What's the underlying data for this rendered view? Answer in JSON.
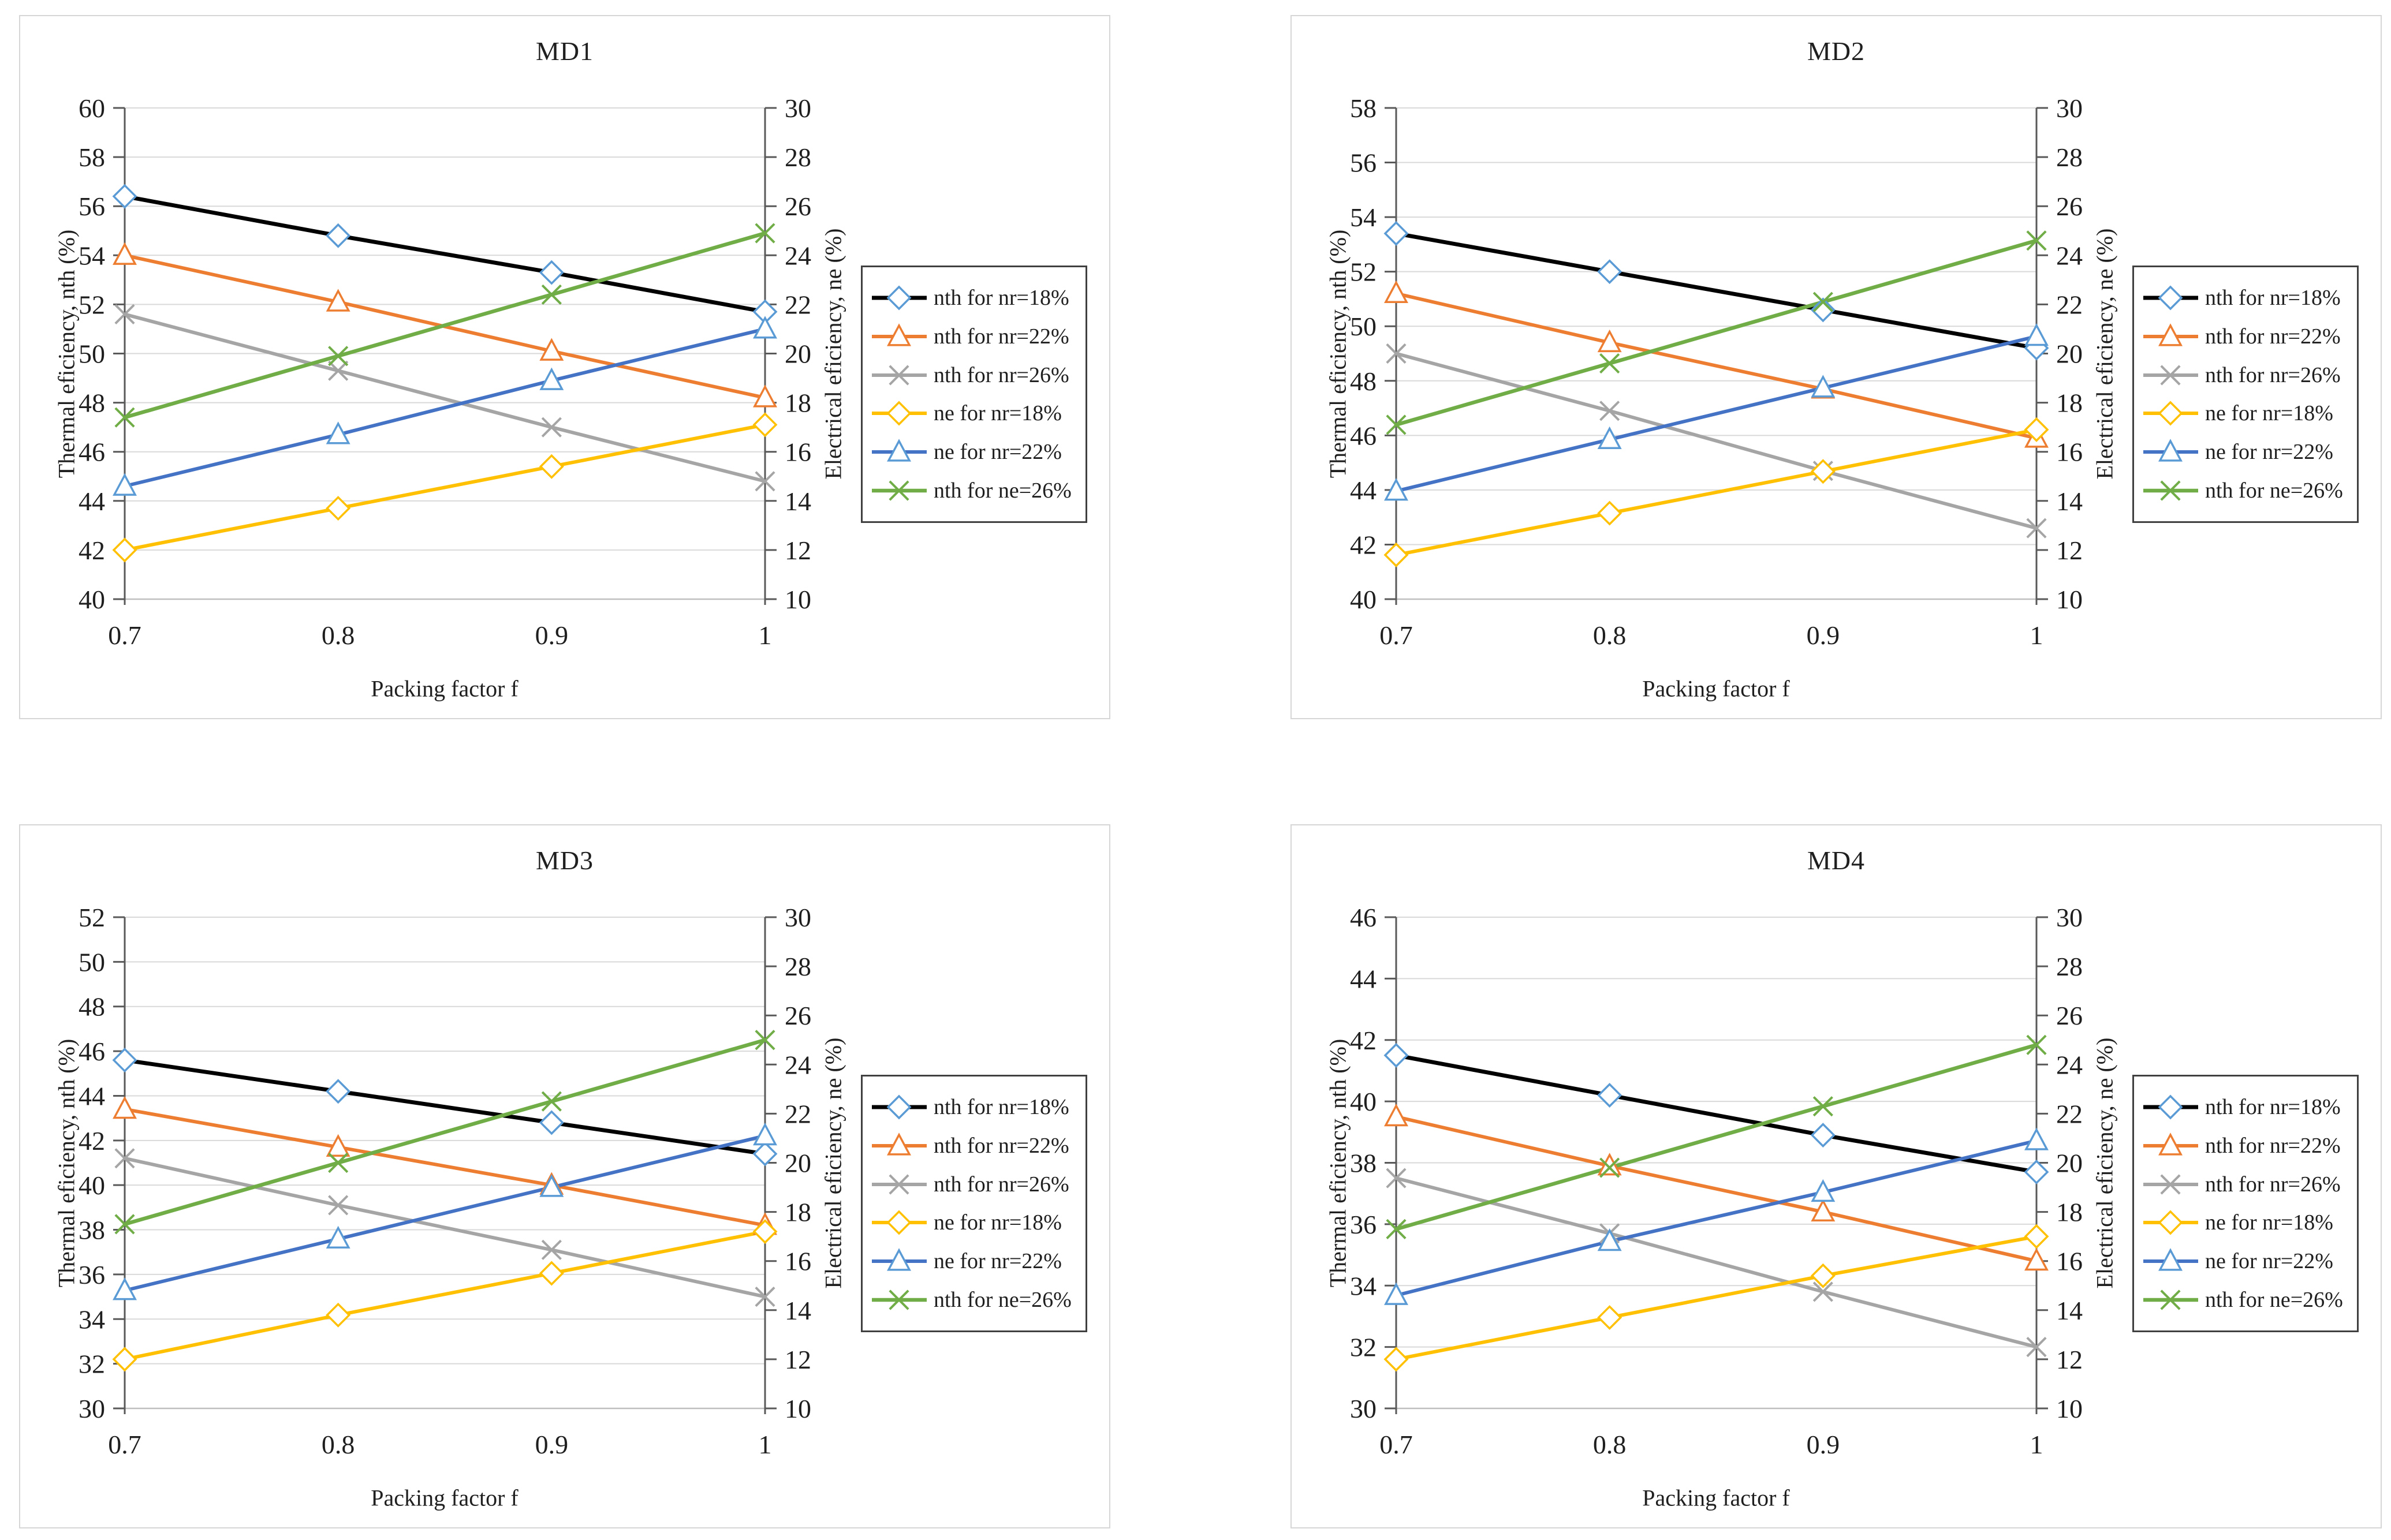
{
  "chart_data": [
    {
      "type": "line",
      "title": "MD1",
      "xlabel": "Packing factor f",
      "grid": true,
      "legend_position": "right",
      "x_tick_labels": [
        "0.7",
        "0.8",
        "0.9",
        "1"
      ],
      "x_values": [
        0.7,
        0.8,
        0.9,
        1
      ],
      "left_axis": {
        "label": "Thermal eficiency, nth (%)",
        "min": 40,
        "max": 60,
        "step": 2
      },
      "right_axis": {
        "label": "Electrical eficiency, ne (%)",
        "min": 10,
        "max": 30,
        "step": 2
      },
      "series": [
        {
          "name": "nth for nr=18%",
          "axis": "left",
          "line_color": "#000000",
          "line_width": 7,
          "marker": "diamond",
          "marker_color": "#5B9BD5",
          "values": [
            56.4,
            54.8,
            53.3,
            51.7
          ]
        },
        {
          "name": "nth for nr=22%",
          "axis": "left",
          "line_color": "#ED7D31",
          "line_width": 6,
          "marker": "triangle",
          "marker_color": "#ED7D31",
          "values": [
            54.0,
            52.1,
            50.1,
            48.2
          ]
        },
        {
          "name": "nth for nr=26%",
          "axis": "left",
          "line_color": "#A5A5A5",
          "line_width": 6,
          "marker": "x",
          "marker_color": "#A5A5A5",
          "values": [
            51.6,
            49.3,
            47.0,
            44.8
          ]
        },
        {
          "name": "ne for nr=18%",
          "axis": "right",
          "line_color": "#FFC000",
          "line_width": 6,
          "marker": "diamond",
          "marker_color": "#FFC000",
          "values": [
            12.0,
            13.7,
            15.4,
            17.1
          ]
        },
        {
          "name": "ne for nr=22%",
          "axis": "right",
          "line_color": "#4472C4",
          "line_width": 6,
          "marker": "triangle",
          "marker_color": "#5B9BD5",
          "values": [
            14.6,
            16.7,
            18.9,
            21.0
          ]
        },
        {
          "name": "nth for ne=26%",
          "axis": "right",
          "line_color": "#70AD47",
          "line_width": 6.5,
          "marker": "x",
          "marker_color": "#70AD47",
          "values": [
            17.4,
            19.9,
            22.4,
            24.9
          ]
        }
      ]
    },
    {
      "type": "line",
      "title": "MD2",
      "xlabel": "Packing factor f",
      "grid": true,
      "legend_position": "right",
      "x_tick_labels": [
        "0.7",
        "0.8",
        "0.9",
        "1"
      ],
      "x_values": [
        0.7,
        0.8,
        0.9,
        1
      ],
      "left_axis": {
        "label": "Thermal eficiency, nth (%)",
        "min": 40,
        "max": 58,
        "step": 2
      },
      "right_axis": {
        "label": "Electrical eficiency, ne (%)",
        "min": 10,
        "max": 30,
        "step": 2
      },
      "series": [
        {
          "name": "nth for nr=18%",
          "axis": "left",
          "line_color": "#000000",
          "line_width": 7,
          "marker": "diamond",
          "marker_color": "#5B9BD5",
          "values": [
            53.4,
            52.0,
            50.6,
            49.2
          ]
        },
        {
          "name": "nth for nr=22%",
          "axis": "left",
          "line_color": "#ED7D31",
          "line_width": 6,
          "marker": "triangle",
          "marker_color": "#ED7D31",
          "values": [
            51.2,
            49.4,
            47.7,
            45.9
          ]
        },
        {
          "name": "nth for nr=26%",
          "axis": "left",
          "line_color": "#A5A5A5",
          "line_width": 6,
          "marker": "x",
          "marker_color": "#A5A5A5",
          "values": [
            49.0,
            46.9,
            44.7,
            42.6
          ]
        },
        {
          "name": "ne for nr=18%",
          "axis": "right",
          "line_color": "#FFC000",
          "line_width": 6,
          "marker": "diamond",
          "marker_color": "#FFC000",
          "values": [
            11.8,
            13.5,
            15.2,
            16.9
          ]
        },
        {
          "name": "ne for nr=22%",
          "axis": "right",
          "line_color": "#4472C4",
          "line_width": 6,
          "marker": "triangle",
          "marker_color": "#5B9BD5",
          "values": [
            14.4,
            16.5,
            18.6,
            20.7
          ]
        },
        {
          "name": "nth for ne=26%",
          "axis": "right",
          "line_color": "#70AD47",
          "line_width": 6.5,
          "marker": "x",
          "marker_color": "#70AD47",
          "values": [
            17.1,
            19.6,
            22.1,
            24.6
          ]
        }
      ]
    },
    {
      "type": "line",
      "title": "MD3",
      "xlabel": "Packing factor f",
      "grid": true,
      "legend_position": "right",
      "x_tick_labels": [
        "0.7",
        "0.8",
        "0.9",
        "1"
      ],
      "x_values": [
        0.7,
        0.8,
        0.9,
        1
      ],
      "left_axis": {
        "label": "Thermal eficiency, nth (%)",
        "min": 30,
        "max": 52,
        "step": 2
      },
      "right_axis": {
        "label": "Electrical eficiency, ne (%)",
        "min": 10,
        "max": 30,
        "step": 2
      },
      "series": [
        {
          "name": "nth for nr=18%",
          "axis": "left",
          "line_color": "#000000",
          "line_width": 7,
          "marker": "diamond",
          "marker_color": "#5B9BD5",
          "values": [
            45.6,
            44.2,
            42.8,
            41.4
          ]
        },
        {
          "name": "nth for nr=22%",
          "axis": "left",
          "line_color": "#ED7D31",
          "line_width": 6,
          "marker": "triangle",
          "marker_color": "#ED7D31",
          "values": [
            43.4,
            41.7,
            40.0,
            38.2
          ]
        },
        {
          "name": "nth for nr=26%",
          "axis": "left",
          "line_color": "#A5A5A5",
          "line_width": 6,
          "marker": "x",
          "marker_color": "#A5A5A5",
          "values": [
            41.2,
            39.1,
            37.1,
            35.0
          ]
        },
        {
          "name": "ne for nr=18%",
          "axis": "right",
          "line_color": "#FFC000",
          "line_width": 6,
          "marker": "diamond",
          "marker_color": "#FFC000",
          "values": [
            12.0,
            13.8,
            15.5,
            17.2
          ]
        },
        {
          "name": "ne for nr=22%",
          "axis": "right",
          "line_color": "#4472C4",
          "line_width": 6,
          "marker": "triangle",
          "marker_color": "#5B9BD5",
          "values": [
            14.8,
            16.9,
            19.0,
            21.1
          ]
        },
        {
          "name": "nth for ne=26%",
          "axis": "right",
          "line_color": "#70AD47",
          "line_width": 6.5,
          "marker": "x",
          "marker_color": "#70AD47",
          "values": [
            17.5,
            20.0,
            22.5,
            25.0
          ]
        }
      ]
    },
    {
      "type": "line",
      "title": "MD4",
      "xlabel": "Packing factor f",
      "grid": true,
      "legend_position": "right",
      "x_tick_labels": [
        "0.7",
        "0.8",
        "0.9",
        "1"
      ],
      "x_values": [
        0.7,
        0.8,
        0.9,
        1
      ],
      "left_axis": {
        "label": "Thermal eficiency, nth (%)",
        "min": 30,
        "max": 46,
        "step": 2
      },
      "right_axis": {
        "label": "Electrical eficiency, ne (%)",
        "min": 10,
        "max": 30,
        "step": 2
      },
      "series": [
        {
          "name": "nth for nr=18%",
          "axis": "left",
          "line_color": "#000000",
          "line_width": 7,
          "marker": "diamond",
          "marker_color": "#5B9BD5",
          "values": [
            41.5,
            40.2,
            38.9,
            37.7
          ]
        },
        {
          "name": "nth for nr=22%",
          "axis": "left",
          "line_color": "#ED7D31",
          "line_width": 6,
          "marker": "triangle",
          "marker_color": "#ED7D31",
          "values": [
            39.5,
            37.9,
            36.4,
            34.8
          ]
        },
        {
          "name": "nth for nr=26%",
          "axis": "left",
          "line_color": "#A5A5A5",
          "line_width": 6,
          "marker": "x",
          "marker_color": "#A5A5A5",
          "values": [
            37.5,
            35.7,
            33.8,
            32.0
          ]
        },
        {
          "name": "ne for nr=18%",
          "axis": "right",
          "line_color": "#FFC000",
          "line_width": 6,
          "marker": "diamond",
          "marker_color": "#FFC000",
          "values": [
            12.0,
            13.7,
            15.4,
            17.0
          ]
        },
        {
          "name": "ne for nr=22%",
          "axis": "right",
          "line_color": "#4472C4",
          "line_width": 6,
          "marker": "triangle",
          "marker_color": "#5B9BD5",
          "values": [
            14.6,
            16.8,
            18.8,
            20.9
          ]
        },
        {
          "name": "nth for ne=26%",
          "axis": "right",
          "line_color": "#70AD47",
          "line_width": 6.5,
          "marker": "x",
          "marker_color": "#70AD47",
          "values": [
            17.3,
            19.8,
            22.3,
            24.8
          ]
        }
      ]
    }
  ],
  "style_colors": {
    "grid_line": "#D9D9D9",
    "axis_line": "#595959",
    "bottom_axis_line": "#BFBFBF",
    "text": "#1f1f1f",
    "legend_border": "#404040"
  }
}
